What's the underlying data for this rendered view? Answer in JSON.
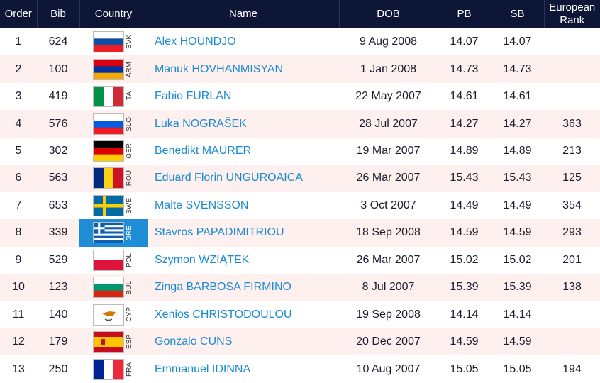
{
  "table": {
    "headers": [
      "Order",
      "Bib",
      "Country",
      "Name",
      "DOB",
      "PB",
      "SB",
      "European Rank"
    ],
    "rows": [
      [
        "1",
        "624",
        "SVK",
        "Alex HOUNDJO",
        "9 Aug 2008",
        "14.07",
        "14.07",
        null
      ],
      [
        "2",
        "100",
        "ARM",
        "Manuk HOVHANMISYAN",
        "1 Jan 2008",
        "14.73",
        "14.73",
        null
      ],
      [
        "3",
        "419",
        "ITA",
        "Fabio FURLAN",
        "22 May 2007",
        "14.61",
        "14.61",
        null
      ],
      [
        "4",
        "576",
        "SLO",
        "Luka NOGRAŠEK",
        "28 Jul 2007",
        "14.27",
        "14.27",
        "363"
      ],
      [
        "5",
        "302",
        "GER",
        "Benedikt MAURER",
        "19 Mar 2007",
        "14.89",
        "14.89",
        "213"
      ],
      [
        "6",
        "563",
        "ROU",
        "Eduard Florin UNGUROAICA",
        "26 Mar 2007",
        "15.43",
        "15.43",
        "125"
      ],
      [
        "7",
        "653",
        "SWE",
        "Malte SVENSSON",
        "3 Oct 2007",
        "14.49",
        "14.49",
        "354"
      ],
      [
        "8",
        "339",
        "GRE",
        "Stavros PAPADIMITRIOU",
        "18 Sep 2008",
        "14.59",
        "14.59",
        "293"
      ],
      [
        "9",
        "529",
        "POL",
        "Szymon WZIĄTEK",
        "26 Mar 2007",
        "15.02",
        "15.02",
        "201"
      ],
      [
        "10",
        "123",
        "BUL",
        "Zinga BARBOSA FIRMINO",
        "8 Jul 2007",
        "15.39",
        "15.39",
        "138"
      ],
      [
        "11",
        "140",
        "CYP",
        "Xenios CHRISTODOULOU",
        "19 Sep 2008",
        "14.14",
        "14.14",
        null
      ],
      [
        "12",
        "179",
        "ESP",
        "Gonzalo CUNS",
        "20 Dec 2007",
        "14.59",
        "14.59",
        null
      ],
      [
        "13",
        "250",
        "FRA",
        "Emmanuel IDINNA",
        "10 Aug 2007",
        "15.05",
        "15.05",
        "194"
      ]
    ]
  }
}
